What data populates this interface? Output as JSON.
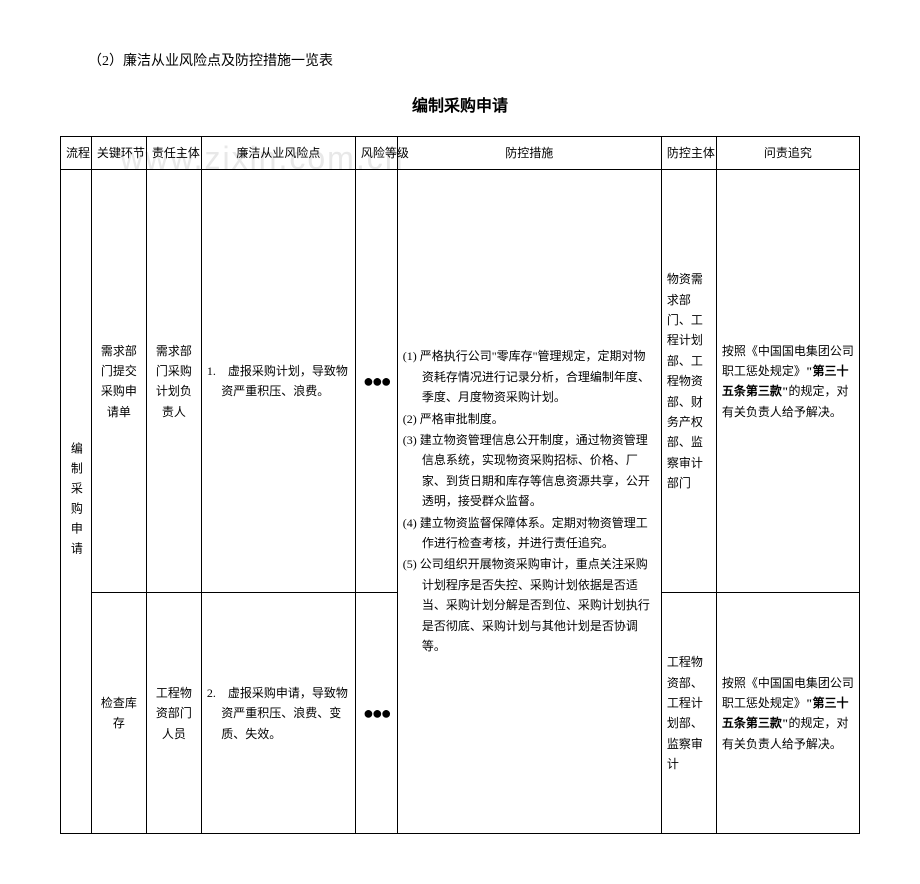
{
  "watermark": "www.zixin.com.cn",
  "header_line": "（2）廉洁从业风险点及防控措施一览表",
  "title": "编制采购申请",
  "headers": {
    "process": "流程",
    "key_step": "关键环节",
    "subject": "责任主体",
    "risk_point": "廉洁从业风险点",
    "risk_level": "风险等级",
    "measure": "防控措施",
    "control_subject": "防控主体",
    "accountability": "问责追究"
  },
  "process_name": "编制采购申请",
  "rows": [
    {
      "key_step": "需求部门提交采购申请单",
      "subject": "需求部门采购计划负责人",
      "risk_point": "1.　虚报采购计划，导致物资严重积压、浪费。",
      "risk_level": "●●●",
      "control_subject": "物资需求部门、工程计划部、工程物资部、财务产权部、监察审计部门",
      "accountability_pre": "按照《中国国电集团公司职工惩处规定》",
      "accountability_bold": "\"第三十五条第三款\"",
      "accountability_post": "的规定，对有关负责人给予解决。"
    },
    {
      "key_step": "检查库存",
      "subject": "工程物资部门人员",
      "risk_point": "2.　虚报采购申请，导致物资严重积压、浪费、变质、失效。",
      "risk_level": "●●●",
      "control_subject": "工程物资部、工程计划部、监察审计",
      "accountability_pre": "按照《中国国电集团公司职工惩处规定》",
      "accountability_bold": "\"第三十五条第三款\"",
      "accountability_post": "的规定，对有关负责人给予解决。"
    }
  ],
  "measures": {
    "m1": "(1) 严格执行公司\"零库存\"管理规定，定期对物资耗存情况进行记录分析，合理编制年度、季度、月度物资采购计划。",
    "m2": "(2) 严格审批制度。",
    "m3": "(3) 建立物资管理信息公开制度，通过物资管理信息系统，实现物资采购招标、价格、厂家、到货日期和库存等信息资源共享，公开透明，接受群众监督。",
    "m4": "(4) 建立物资监督保障体系。定期对物资管理工作进行检查考核，并进行责任追究。",
    "m5": "(5) 公司组织开展物资采购审计，重点关注采购计划程序是否失控、采购计划依据是否适当、采购计划分解是否到位、采购计划执行是否彻底、采购计划与其他计划是否协调等。"
  }
}
